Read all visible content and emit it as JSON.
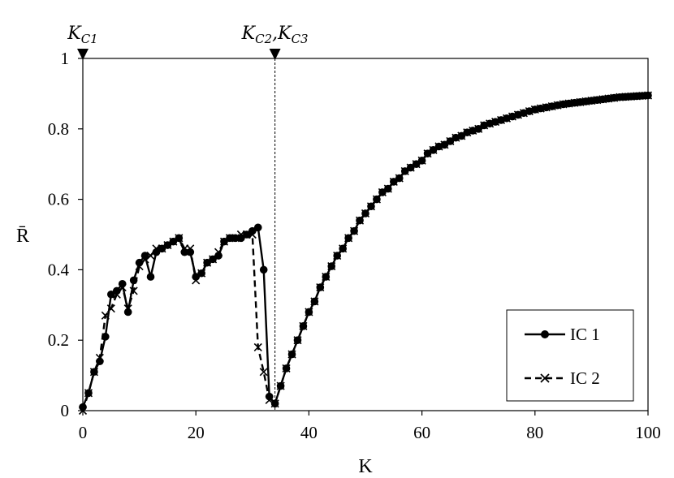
{
  "chart_data": {
    "type": "line",
    "title": "",
    "xlabel": "K",
    "ylabel": "R̄",
    "xlim": [
      0,
      100
    ],
    "ylim": [
      0,
      1
    ],
    "x_ticks": [
      0,
      20,
      40,
      60,
      80,
      100
    ],
    "y_ticks": [
      0,
      0.2,
      0.4,
      0.6,
      0.8,
      1
    ],
    "x_tick_labels": [
      "0",
      "20",
      "40",
      "60",
      "80",
      "100"
    ],
    "y_tick_labels": [
      "0",
      "0.2",
      "0.4",
      "0.6",
      "0.8",
      "1"
    ],
    "grid": false,
    "legend": "bottom-right",
    "markers": [
      {
        "x": 0,
        "label_main": "K",
        "label_sub": "C1"
      },
      {
        "x": 34,
        "label_main": "K",
        "label_sub": "C2",
        "label_main_2": "K",
        "label_sub_2": "C3"
      }
    ],
    "series": [
      {
        "name": "IC 1",
        "marker": "dot",
        "line": "solid",
        "points": [
          [
            0,
            0.01
          ],
          [
            1,
            0.05
          ],
          [
            2,
            0.11
          ],
          [
            3,
            0.14
          ],
          [
            4,
            0.21
          ],
          [
            5,
            0.33
          ],
          [
            6,
            0.34
          ],
          [
            7,
            0.36
          ],
          [
            8,
            0.28
          ],
          [
            9,
            0.37
          ],
          [
            10,
            0.42
          ],
          [
            11,
            0.44
          ],
          [
            12,
            0.38
          ],
          [
            13,
            0.45
          ],
          [
            14,
            0.46
          ],
          [
            15,
            0.47
          ],
          [
            16,
            0.48
          ],
          [
            17,
            0.49
          ],
          [
            18,
            0.45
          ],
          [
            19,
            0.45
          ],
          [
            20,
            0.38
          ],
          [
            21,
            0.39
          ],
          [
            22,
            0.42
          ],
          [
            23,
            0.43
          ],
          [
            24,
            0.44
          ],
          [
            25,
            0.48
          ],
          [
            26,
            0.49
          ],
          [
            27,
            0.49
          ],
          [
            28,
            0.49
          ],
          [
            29,
            0.5
          ],
          [
            30,
            0.51
          ],
          [
            31,
            0.52
          ],
          [
            32,
            0.4
          ],
          [
            33,
            0.04
          ],
          [
            34,
            0.02
          ],
          [
            35,
            0.07
          ],
          [
            36,
            0.12
          ],
          [
            37,
            0.16
          ],
          [
            38,
            0.2
          ],
          [
            39,
            0.24
          ],
          [
            40,
            0.28
          ],
          [
            41,
            0.31
          ],
          [
            42,
            0.35
          ],
          [
            43,
            0.38
          ],
          [
            44,
            0.41
          ],
          [
            45,
            0.44
          ],
          [
            46,
            0.46
          ],
          [
            47,
            0.49
          ],
          [
            48,
            0.51
          ],
          [
            49,
            0.54
          ],
          [
            50,
            0.56
          ],
          [
            51,
            0.58
          ],
          [
            52,
            0.6
          ],
          [
            53,
            0.62
          ],
          [
            54,
            0.63
          ],
          [
            55,
            0.65
          ],
          [
            56,
            0.66
          ],
          [
            57,
            0.68
          ],
          [
            58,
            0.69
          ],
          [
            59,
            0.7
          ],
          [
            60,
            0.71
          ],
          [
            61,
            0.73
          ],
          [
            62,
            0.74
          ],
          [
            63,
            0.75
          ],
          [
            64,
            0.755
          ],
          [
            65,
            0.765
          ],
          [
            66,
            0.775
          ],
          [
            67,
            0.78
          ],
          [
            68,
            0.79
          ],
          [
            69,
            0.795
          ],
          [
            70,
            0.8
          ],
          [
            71,
            0.81
          ],
          [
            72,
            0.815
          ],
          [
            73,
            0.82
          ],
          [
            74,
            0.825
          ],
          [
            75,
            0.83
          ],
          [
            76,
            0.835
          ],
          [
            77,
            0.84
          ],
          [
            78,
            0.845
          ],
          [
            79,
            0.85
          ],
          [
            80,
            0.855
          ],
          [
            81,
            0.858
          ],
          [
            82,
            0.861
          ],
          [
            83,
            0.864
          ],
          [
            84,
            0.867
          ],
          [
            85,
            0.87
          ],
          [
            86,
            0.872
          ],
          [
            87,
            0.874
          ],
          [
            88,
            0.876
          ],
          [
            89,
            0.878
          ],
          [
            90,
            0.88
          ],
          [
            91,
            0.882
          ],
          [
            92,
            0.884
          ],
          [
            93,
            0.886
          ],
          [
            94,
            0.888
          ],
          [
            95,
            0.89
          ],
          [
            96,
            0.891
          ],
          [
            97,
            0.892
          ],
          [
            98,
            0.893
          ],
          [
            99,
            0.894
          ],
          [
            100,
            0.895
          ]
        ]
      },
      {
        "name": "IC 2",
        "marker": "x",
        "line": "dashed",
        "points": [
          [
            0,
            0.0
          ],
          [
            1,
            0.05
          ],
          [
            2,
            0.11
          ],
          [
            3,
            0.15
          ],
          [
            4,
            0.27
          ],
          [
            5,
            0.29
          ],
          [
            6,
            0.33
          ],
          [
            7,
            0.35
          ],
          [
            8,
            0.29
          ],
          [
            9,
            0.34
          ],
          [
            10,
            0.41
          ],
          [
            11,
            0.43
          ],
          [
            12,
            0.44
          ],
          [
            13,
            0.46
          ],
          [
            14,
            0.46
          ],
          [
            15,
            0.47
          ],
          [
            16,
            0.48
          ],
          [
            17,
            0.49
          ],
          [
            18,
            0.46
          ],
          [
            19,
            0.46
          ],
          [
            20,
            0.37
          ],
          [
            21,
            0.39
          ],
          [
            22,
            0.42
          ],
          [
            23,
            0.43
          ],
          [
            24,
            0.45
          ],
          [
            25,
            0.48
          ],
          [
            26,
            0.49
          ],
          [
            27,
            0.49
          ],
          [
            28,
            0.5
          ],
          [
            29,
            0.5
          ],
          [
            30,
            0.5
          ],
          [
            31,
            0.18
          ],
          [
            32,
            0.11
          ],
          [
            33,
            0.03
          ],
          [
            34,
            0.02
          ],
          [
            35,
            0.07
          ],
          [
            36,
            0.12
          ],
          [
            37,
            0.16
          ],
          [
            38,
            0.2
          ],
          [
            39,
            0.24
          ],
          [
            40,
            0.28
          ],
          [
            41,
            0.31
          ],
          [
            42,
            0.35
          ],
          [
            43,
            0.38
          ],
          [
            44,
            0.41
          ],
          [
            45,
            0.44
          ],
          [
            46,
            0.46
          ],
          [
            47,
            0.49
          ],
          [
            48,
            0.51
          ],
          [
            49,
            0.54
          ],
          [
            50,
            0.56
          ],
          [
            51,
            0.58
          ],
          [
            52,
            0.6
          ],
          [
            53,
            0.62
          ],
          [
            54,
            0.63
          ],
          [
            55,
            0.65
          ],
          [
            56,
            0.66
          ],
          [
            57,
            0.68
          ],
          [
            58,
            0.69
          ],
          [
            59,
            0.7
          ],
          [
            60,
            0.71
          ],
          [
            61,
            0.73
          ],
          [
            62,
            0.74
          ],
          [
            63,
            0.75
          ],
          [
            64,
            0.755
          ],
          [
            65,
            0.765
          ],
          [
            66,
            0.775
          ],
          [
            67,
            0.78
          ],
          [
            68,
            0.79
          ],
          [
            69,
            0.795
          ],
          [
            70,
            0.8
          ],
          [
            71,
            0.81
          ],
          [
            72,
            0.815
          ],
          [
            73,
            0.82
          ],
          [
            74,
            0.825
          ],
          [
            75,
            0.83
          ],
          [
            76,
            0.835
          ],
          [
            77,
            0.84
          ],
          [
            78,
            0.845
          ],
          [
            79,
            0.85
          ],
          [
            80,
            0.855
          ],
          [
            81,
            0.858
          ],
          [
            82,
            0.861
          ],
          [
            83,
            0.864
          ],
          [
            84,
            0.867
          ],
          [
            85,
            0.87
          ],
          [
            86,
            0.872
          ],
          [
            87,
            0.874
          ],
          [
            88,
            0.876
          ],
          [
            89,
            0.878
          ],
          [
            90,
            0.88
          ],
          [
            91,
            0.882
          ],
          [
            92,
            0.884
          ],
          [
            93,
            0.886
          ],
          [
            94,
            0.888
          ],
          [
            95,
            0.89
          ],
          [
            96,
            0.891
          ],
          [
            97,
            0.892
          ],
          [
            98,
            0.893
          ],
          [
            99,
            0.894
          ],
          [
            100,
            0.895
          ]
        ]
      }
    ],
    "colors": {
      "line": "#000000",
      "background": "#ffffff"
    }
  }
}
